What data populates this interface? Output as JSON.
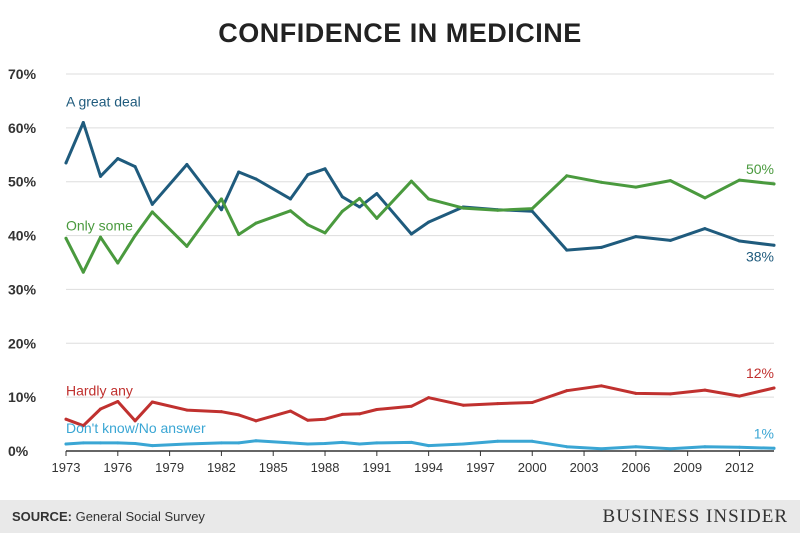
{
  "chart_data": {
    "type": "line",
    "title": "CONFIDENCE IN MEDICINE",
    "xlabel": "",
    "ylabel": "",
    "ylim": [
      0,
      70
    ],
    "xlim": [
      1973,
      2014
    ],
    "yticks": [
      "0%",
      "10%",
      "20%",
      "30%",
      "40%",
      "50%",
      "60%",
      "70%"
    ],
    "yticks_values": [
      0,
      10,
      20,
      30,
      40,
      50,
      60,
      70
    ],
    "xticks": [
      "1973",
      "1976",
      "1979",
      "1982",
      "1985",
      "1988",
      "1991",
      "1994",
      "1997",
      "2000",
      "2003",
      "2006",
      "2009",
      "2012"
    ],
    "grid": true,
    "series": [
      {
        "name": "A great deal",
        "color": "#1f5b7d",
        "end_label": "38%",
        "x": [
          1973,
          1974,
          1975,
          1976,
          1977,
          1978,
          1980,
          1982,
          1983,
          1984,
          1986,
          1987,
          1988,
          1989,
          1990,
          1991,
          1993,
          1994,
          1996,
          1998,
          2000,
          2002,
          2004,
          2006,
          2008,
          2010,
          2012,
          2014
        ],
        "values": [
          53.5,
          61.0,
          51.0,
          54.3,
          52.8,
          45.8,
          53.2,
          44.8,
          51.8,
          50.5,
          46.8,
          51.3,
          52.4,
          47.2,
          45.3,
          47.8,
          40.3,
          42.5,
          45.3,
          44.8,
          44.5,
          37.3,
          37.8,
          39.8,
          39.1,
          41.3,
          39.0,
          38.2
        ]
      },
      {
        "name": "Only some",
        "color": "#4a9a3e",
        "end_label": "50%",
        "x": [
          1973,
          1974,
          1975,
          1976,
          1977,
          1978,
          1980,
          1982,
          1983,
          1984,
          1986,
          1987,
          1988,
          1989,
          1990,
          1991,
          1993,
          1994,
          1996,
          1998,
          2000,
          2002,
          2004,
          2006,
          2008,
          2010,
          2012,
          2014
        ],
        "values": [
          39.5,
          33.2,
          39.7,
          34.9,
          40.0,
          44.4,
          38.0,
          46.8,
          40.2,
          42.3,
          44.6,
          42.0,
          40.5,
          44.5,
          46.9,
          43.2,
          50.1,
          46.8,
          45.1,
          44.7,
          45.0,
          51.1,
          49.9,
          49.0,
          50.2,
          47.0,
          50.3,
          49.6
        ]
      },
      {
        "name": "Hardly any",
        "color": "#c0312f",
        "end_label": "12%",
        "x": [
          1973,
          1974,
          1975,
          1976,
          1977,
          1978,
          1980,
          1982,
          1983,
          1984,
          1986,
          1987,
          1988,
          1989,
          1990,
          1991,
          1993,
          1994,
          1996,
          1998,
          2000,
          2002,
          2004,
          2006,
          2008,
          2010,
          2012,
          2014
        ],
        "values": [
          5.9,
          4.7,
          7.8,
          9.2,
          5.6,
          9.1,
          7.6,
          7.3,
          6.7,
          5.6,
          7.4,
          5.7,
          5.9,
          6.8,
          6.9,
          7.7,
          8.3,
          9.9,
          8.5,
          8.8,
          9.0,
          11.2,
          12.1,
          10.7,
          10.6,
          11.3,
          10.2,
          11.7
        ]
      },
      {
        "name": "Don't know/No answer",
        "color": "#3aa6d4",
        "end_label": "1%",
        "x": [
          1973,
          1974,
          1975,
          1976,
          1977,
          1978,
          1980,
          1982,
          1983,
          1984,
          1986,
          1987,
          1988,
          1989,
          1990,
          1991,
          1993,
          1994,
          1996,
          1998,
          2000,
          2002,
          2004,
          2006,
          2008,
          2010,
          2012,
          2014
        ],
        "values": [
          1.3,
          1.5,
          1.5,
          1.5,
          1.4,
          1.0,
          1.3,
          1.5,
          1.5,
          1.9,
          1.5,
          1.3,
          1.4,
          1.6,
          1.3,
          1.5,
          1.6,
          1.0,
          1.3,
          1.8,
          1.8,
          0.8,
          0.4,
          0.8,
          0.4,
          0.8,
          0.7,
          0.5
        ]
      }
    ],
    "source_label": "SOURCE:",
    "source_text": "General Social Survey"
  },
  "brand": "BUSINESS INSIDER"
}
